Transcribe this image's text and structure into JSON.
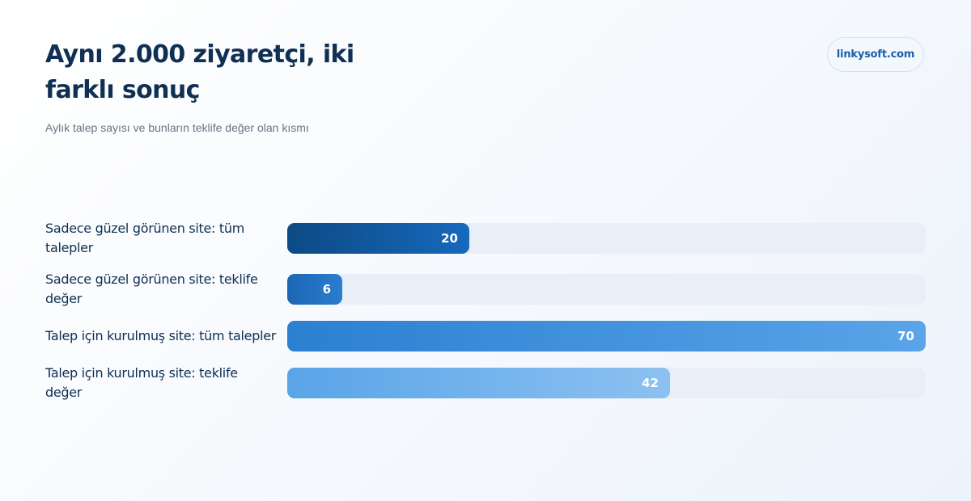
{
  "header": {
    "title": "Aynı 2.000 ziyaretçi, iki farklı sonuç",
    "subtitle": "Aylık talep sayısı ve bunların teklife değer olan kısmı",
    "brand": "linkysoft.com"
  },
  "chart_data": {
    "type": "bar",
    "orientation": "horizontal",
    "title": "Aynı 2.000 ziyaretçi, iki farklı sonuç",
    "subtitle": "Aylık talep sayısı ve bunların teklife değer olan kısmı",
    "categories": [
      "Sadece güzel görünen site: tüm talepler",
      "Sadece güzel görünen site: teklife değer",
      "Talep için kurulmuş site: tüm talepler",
      "Talep için kurulmuş site: teklife değer"
    ],
    "values": [
      20,
      6,
      70,
      42
    ],
    "value_labels": [
      "20",
      "6",
      "70",
      "42"
    ],
    "xlim": [
      0,
      70
    ],
    "grid": false,
    "legend": "none",
    "colors": [
      [
        "#0c4a84",
        "#1769bd"
      ],
      [
        "#1a66b4",
        "#2c7dcf"
      ],
      [
        "#2c80d2",
        "#5aa4e8"
      ],
      [
        "#5aa4e8",
        "#8cc1f1"
      ]
    ],
    "track_color": "#e8eff8"
  }
}
